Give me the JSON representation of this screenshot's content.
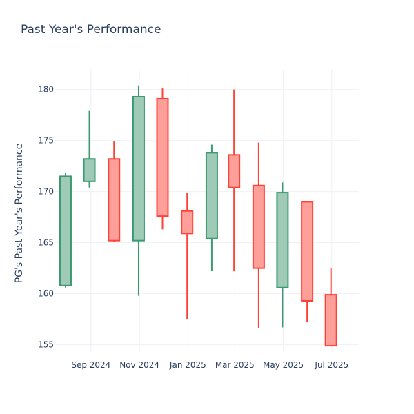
{
  "chart_data": {
    "type": "candlestick",
    "title": "Past Year's Performance",
    "xlabel": "",
    "ylabel": "PG's Past Year's Performance",
    "ylim": [
      154.3,
      182.0
    ],
    "y_ticks": [
      155,
      160,
      165,
      170,
      175,
      180
    ],
    "x_ticks": [
      {
        "label": "Sep 2024",
        "date": "2024-09-01"
      },
      {
        "label": "Nov 2024",
        "date": "2024-11-01"
      },
      {
        "label": "Jan 2025",
        "date": "2025-01-01"
      },
      {
        "label": "Mar 2025",
        "date": "2025-03-01"
      },
      {
        "label": "May 2025",
        "date": "2025-05-01"
      },
      {
        "label": "Jul 2025",
        "date": "2025-07-01"
      }
    ],
    "x_range": [
      "2024-07-31",
      "2025-07-31"
    ],
    "candles": [
      {
        "date": "2024-07-31",
        "open": 160.8,
        "high": 171.8,
        "low": 160.6,
        "close": 171.5
      },
      {
        "date": "2024-08-30",
        "open": 171.0,
        "high": 177.9,
        "low": 170.4,
        "close": 173.2
      },
      {
        "date": "2024-09-30",
        "open": 173.2,
        "high": 174.9,
        "low": 165.1,
        "close": 165.2
      },
      {
        "date": "2024-10-31",
        "open": 165.2,
        "high": 180.4,
        "low": 159.8,
        "close": 179.3
      },
      {
        "date": "2024-11-30",
        "open": 179.1,
        "high": 180.1,
        "low": 166.3,
        "close": 167.6
      },
      {
        "date": "2024-12-31",
        "open": 168.1,
        "high": 169.9,
        "low": 157.5,
        "close": 165.9
      },
      {
        "date": "2025-01-31",
        "open": 165.4,
        "high": 174.6,
        "low": 162.2,
        "close": 173.8
      },
      {
        "date": "2025-02-28",
        "open": 173.6,
        "high": 180.0,
        "low": 162.2,
        "close": 170.4
      },
      {
        "date": "2025-03-31",
        "open": 170.6,
        "high": 174.8,
        "low": 156.6,
        "close": 162.5
      },
      {
        "date": "2025-04-30",
        "open": 160.6,
        "high": 170.9,
        "low": 156.7,
        "close": 169.9
      },
      {
        "date": "2025-05-31",
        "open": 169.0,
        "high": 169.0,
        "low": 157.2,
        "close": 159.3
      },
      {
        "date": "2025-06-30",
        "open": 159.9,
        "high": 162.5,
        "low": 154.9,
        "close": 154.9
      }
    ],
    "increasing_color": "#3d9970",
    "increasing_fill": "#9ecab7",
    "decreasing_color": "#ff4136",
    "decreasing_fill": "#ff9f9a",
    "grid": true,
    "legend": "none"
  }
}
